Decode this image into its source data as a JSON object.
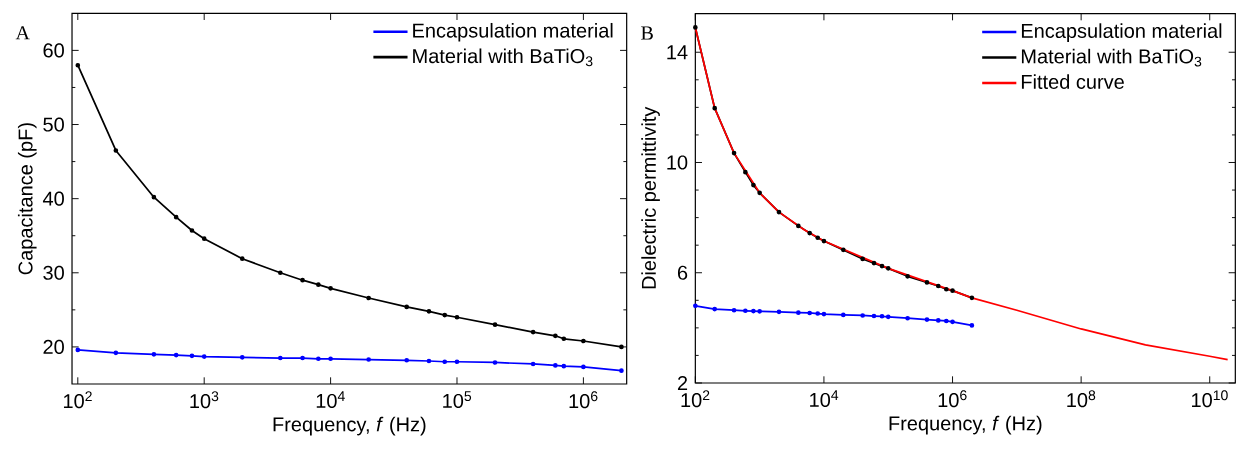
{
  "chart_data": [
    {
      "type": "line",
      "annotations": [
        "A"
      ],
      "xlabel": "Frequency, *f* (Hz)",
      "ylabel": "Capacitance (pF)",
      "log": "x",
      "legend": "top right",
      "marker": "circle",
      "line_style": "solid",
      "grid": false,
      "xlim": [
        90,
        2200000
      ],
      "ylim": [
        15,
        65
      ],
      "xticks": [
        {
          "value": 100,
          "label": "10$^{2}$"
        },
        {
          "value": 1000,
          "label": "10$^{3}$"
        },
        {
          "value": 10000,
          "label": "10$^{4}$"
        },
        {
          "value": 100000,
          "label": "10$^{5}$"
        },
        {
          "value": 1000000,
          "label": "10$^{6}$"
        }
      ],
      "yticks": [
        20,
        30,
        40,
        50,
        60
      ],
      "series": [
        {
          "name": "Encapsulation material",
          "color": "#0000ff",
          "x": [
            100,
            200,
            400,
            600,
            800,
            1000,
            2000,
            4000,
            6000,
            8000,
            10000,
            20000,
            40000,
            60000,
            80000,
            100000,
            200000,
            400000,
            600000,
            700000,
            1000000,
            2000000
          ],
          "values": [
            19.6,
            19.2,
            19.0,
            18.9,
            18.8,
            18.7,
            18.6,
            18.5,
            18.5,
            18.4,
            18.4,
            18.3,
            18.2,
            18.1,
            18.0,
            18.0,
            17.9,
            17.7,
            17.5,
            17.4,
            17.3,
            16.8
          ]
        },
        {
          "name": "Material with BaTiO$_{3}$",
          "color": "#000000",
          "x": [
            100,
            200,
            400,
            600,
            800,
            1000,
            2000,
            4000,
            6000,
            8000,
            10000,
            20000,
            40000,
            60000,
            80000,
            100000,
            200000,
            400000,
            600000,
            700000,
            1000000,
            2000000
          ],
          "values": [
            58,
            46.5,
            40.2,
            37.5,
            35.7,
            34.6,
            31.9,
            30.0,
            29.0,
            28.4,
            27.9,
            26.6,
            25.4,
            24.8,
            24.3,
            24.0,
            23.0,
            22.0,
            21.5,
            21.1,
            20.8,
            20.0
          ]
        }
      ]
    },
    {
      "type": "line",
      "annotations": [
        "B"
      ],
      "xlabel": "Frequency, *f* (Hz)",
      "ylabel": "Dielectric permittivity",
      "log": "x",
      "legend": "top right",
      "marker": "circle",
      "line_style": "solid",
      "grid": false,
      "xlim": [
        100,
        25000000000
      ],
      "ylim": [
        2,
        15.4
      ],
      "xticks": [
        {
          "value": 100,
          "label": "10$^{2}$"
        },
        {
          "value": 10000,
          "label": "10$^{4}$"
        },
        {
          "value": 1000000,
          "label": "10$^{6}$"
        },
        {
          "value": 100000000,
          "label": "10$^{8}$"
        },
        {
          "value": 10000000000,
          "label": "10$^{10}$"
        }
      ],
      "yticks": [
        2,
        6,
        10,
        14
      ],
      "series": [
        {
          "name": "Encapsulation material",
          "color": "#0000ff",
          "x": [
            100,
            200,
            400,
            600,
            800,
            1000,
            2000,
            4000,
            6000,
            8000,
            10000,
            20000,
            40000,
            60000,
            80000,
            100000,
            200000,
            400000,
            600000,
            800000,
            1000000,
            2000000
          ],
          "values": [
            4.8,
            4.68,
            4.64,
            4.62,
            4.61,
            4.6,
            4.58,
            4.55,
            4.54,
            4.52,
            4.5,
            4.47,
            4.45,
            4.43,
            4.42,
            4.4,
            4.35,
            4.3,
            4.27,
            4.25,
            4.22,
            4.09
          ]
        },
        {
          "name": "Material with BaTiO$_{3}$",
          "color": "#000000",
          "x": [
            100,
            200,
            400,
            600,
            800,
            1000,
            2000,
            4000,
            6000,
            8000,
            10000,
            20000,
            40000,
            60000,
            80000,
            100000,
            200000,
            400000,
            600000,
            800000,
            1000000,
            2000000
          ],
          "values": [
            14.9,
            11.97,
            10.34,
            9.65,
            9.18,
            8.9,
            8.2,
            7.7,
            7.44,
            7.27,
            7.15,
            6.83,
            6.5,
            6.35,
            6.24,
            6.16,
            5.87,
            5.65,
            5.52,
            5.4,
            5.35,
            5.09
          ]
        },
        {
          "name": "Fitted curve",
          "color": "#ff0000",
          "marker": "none",
          "x": [
            100,
            200,
            400,
            1000,
            2000,
            5000,
            10000,
            100000,
            1000000,
            2000000,
            10000000,
            100000000,
            1000000000,
            10000000000,
            19000000000
          ],
          "values": [
            14.9,
            11.97,
            10.34,
            8.9,
            8.2,
            7.55,
            7.15,
            6.16,
            5.35,
            5.09,
            4.64,
            3.96,
            3.38,
            2.97,
            2.85
          ]
        }
      ]
    }
  ]
}
